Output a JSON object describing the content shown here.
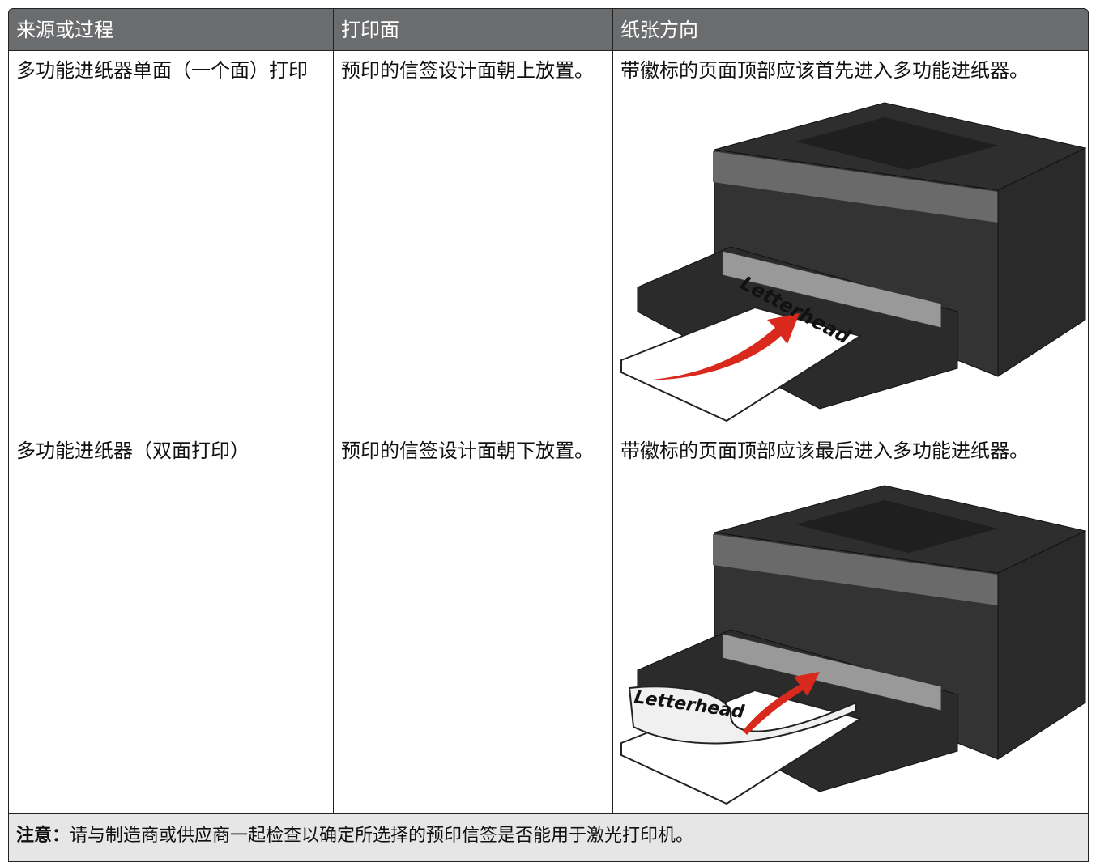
{
  "table": {
    "header": [
      "来源或过程",
      "打印面",
      "纸张方向"
    ],
    "rows": [
      {
        "cells": [
          "多功能进纸器单面（一个面）打印",
          "预印的信签设计面朝上放置。",
          "带徽标的页面顶部应该首先进入多功能进纸器。"
        ],
        "image_label": "Letterhead"
      },
      {
        "cells": [
          "多功能进纸器（双面打印）",
          "预印的信签设计面朝下放置。",
          "带徽标的页面顶部应该最后进入多功能进纸器。"
        ],
        "image_label": "Letterhead"
      }
    ]
  },
  "note": {
    "label": "注意：",
    "text": "请与制造商或供应商一起检查以确定所选择的预印信签是否能用于激光打印机。"
  }
}
